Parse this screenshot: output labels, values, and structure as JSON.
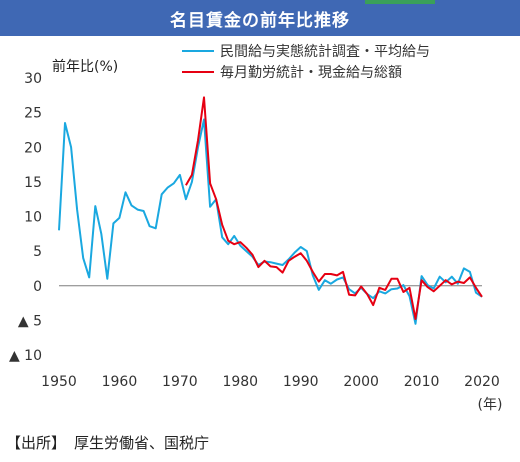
{
  "header": {
    "title": "名目賃金の前年比推移"
  },
  "source": {
    "label": "【出所】",
    "text": "厚生労働省、国税庁"
  },
  "colors": {
    "title_bg": "#3f68b4",
    "title_accent": "#3aa05a",
    "series1": "#1aa8e0",
    "series2": "#e60012",
    "zero_line": "#7f7f7f"
  },
  "chart_data": {
    "type": "line",
    "ylabel": "前年比(%)",
    "xunit": "(年)",
    "xlim": [
      1950,
      2020
    ],
    "ylim": [
      -10,
      30
    ],
    "xticks": [
      "1950",
      "1960",
      "1970",
      "1980",
      "1990",
      "2000",
      "2010",
      "2020"
    ],
    "yticks": [
      {
        "value": 30,
        "label": "30"
      },
      {
        "value": 25,
        "label": "25"
      },
      {
        "value": 20,
        "label": "20"
      },
      {
        "value": 15,
        "label": "15"
      },
      {
        "value": 10,
        "label": "10"
      },
      {
        "value": 5,
        "label": "5"
      },
      {
        "value": 0,
        "label": "0"
      },
      {
        "value": -5,
        "label": "▲ 5"
      },
      {
        "value": -10,
        "label": "▲ 10"
      }
    ],
    "legend_position": "top-right",
    "series": [
      {
        "name": "民間給与実態統計調査・平均給与",
        "color": "#1aa8e0",
        "points": [
          [
            1950,
            8
          ],
          [
            1951,
            23.5
          ],
          [
            1952,
            20
          ],
          [
            1953,
            11
          ],
          [
            1954,
            4
          ],
          [
            1955,
            1.2
          ],
          [
            1956,
            11.5
          ],
          [
            1957,
            7.5
          ],
          [
            1958,
            1
          ],
          [
            1959,
            9
          ],
          [
            1960,
            9.8
          ],
          [
            1961,
            13.5
          ],
          [
            1962,
            11.6
          ],
          [
            1963,
            11
          ],
          [
            1964,
            10.8
          ],
          [
            1965,
            8.6
          ],
          [
            1966,
            8.3
          ],
          [
            1967,
            13.2
          ],
          [
            1968,
            14.2
          ],
          [
            1969,
            14.8
          ],
          [
            1970,
            16
          ],
          [
            1971,
            12.5
          ],
          [
            1972,
            15
          ],
          [
            1973,
            20
          ],
          [
            1974,
            24
          ],
          [
            1975,
            11.4
          ],
          [
            1976,
            12.5
          ],
          [
            1977,
            7
          ],
          [
            1978,
            6
          ],
          [
            1979,
            7.2
          ],
          [
            1980,
            5.8
          ],
          [
            1981,
            5
          ],
          [
            1982,
            4.2
          ],
          [
            1983,
            3
          ],
          [
            1984,
            3.5
          ],
          [
            1985,
            3.4
          ],
          [
            1986,
            3.2
          ],
          [
            1987,
            3
          ],
          [
            1988,
            3.8
          ],
          [
            1989,
            4.8
          ],
          [
            1990,
            5.6
          ],
          [
            1991,
            5
          ],
          [
            1992,
            1.5
          ],
          [
            1993,
            -0.6
          ],
          [
            1994,
            0.8
          ],
          [
            1995,
            0.3
          ],
          [
            1996,
            0.9
          ],
          [
            1997,
            1.2
          ],
          [
            1998,
            -0.5
          ],
          [
            1999,
            -1.1
          ],
          [
            2000,
            -0.3
          ],
          [
            2001,
            -1.2
          ],
          [
            2002,
            -1.8
          ],
          [
            2003,
            -0.8
          ],
          [
            2004,
            -1.1
          ],
          [
            2005,
            -0.5
          ],
          [
            2006,
            -0.4
          ],
          [
            2007,
            0.1
          ],
          [
            2008,
            -1.5
          ],
          [
            2009,
            -5.5
          ],
          [
            2010,
            1.4
          ],
          [
            2011,
            0.1
          ],
          [
            2012,
            -0.4
          ],
          [
            2013,
            1.3
          ],
          [
            2014,
            0.5
          ],
          [
            2015,
            1.3
          ],
          [
            2016,
            0.3
          ],
          [
            2017,
            2.5
          ],
          [
            2018,
            2
          ],
          [
            2019,
            -1
          ],
          [
            2020,
            -1.6
          ]
        ]
      },
      {
        "name": "毎月勤労統計・現金給与総額",
        "color": "#e60012",
        "points": [
          [
            1971,
            14.5
          ],
          [
            1972,
            16
          ],
          [
            1973,
            21
          ],
          [
            1974,
            27.2
          ],
          [
            1975,
            14.8
          ],
          [
            1976,
            12.5
          ],
          [
            1977,
            8.8
          ],
          [
            1978,
            6.5
          ],
          [
            1979,
            6
          ],
          [
            1980,
            6.3
          ],
          [
            1981,
            5.5
          ],
          [
            1982,
            4.5
          ],
          [
            1983,
            2.7
          ],
          [
            1984,
            3.6
          ],
          [
            1985,
            2.8
          ],
          [
            1986,
            2.7
          ],
          [
            1987,
            1.9
          ],
          [
            1988,
            3.6
          ],
          [
            1989,
            4.2
          ],
          [
            1990,
            4.7
          ],
          [
            1991,
            3.6
          ],
          [
            1992,
            2
          ],
          [
            1993,
            0.6
          ],
          [
            1994,
            1.7
          ],
          [
            1995,
            1.7
          ],
          [
            1996,
            1.5
          ],
          [
            1997,
            2
          ],
          [
            1998,
            -1.3
          ],
          [
            1999,
            -1.4
          ],
          [
            2000,
            -0.1
          ],
          [
            2001,
            -1.2
          ],
          [
            2002,
            -2.8
          ],
          [
            2003,
            -0.3
          ],
          [
            2004,
            -0.6
          ],
          [
            2005,
            1
          ],
          [
            2006,
            1
          ],
          [
            2007,
            -0.9
          ],
          [
            2008,
            -0.3
          ],
          [
            2009,
            -4.8
          ],
          [
            2010,
            0.8
          ],
          [
            2011,
            -0.2
          ],
          [
            2012,
            -0.8
          ],
          [
            2013,
            0
          ],
          [
            2014,
            0.8
          ],
          [
            2015,
            0.2
          ],
          [
            2016,
            0.6
          ],
          [
            2017,
            0.4
          ],
          [
            2018,
            1.2
          ],
          [
            2019,
            -0.3
          ],
          [
            2020,
            -1.6
          ]
        ]
      }
    ]
  }
}
